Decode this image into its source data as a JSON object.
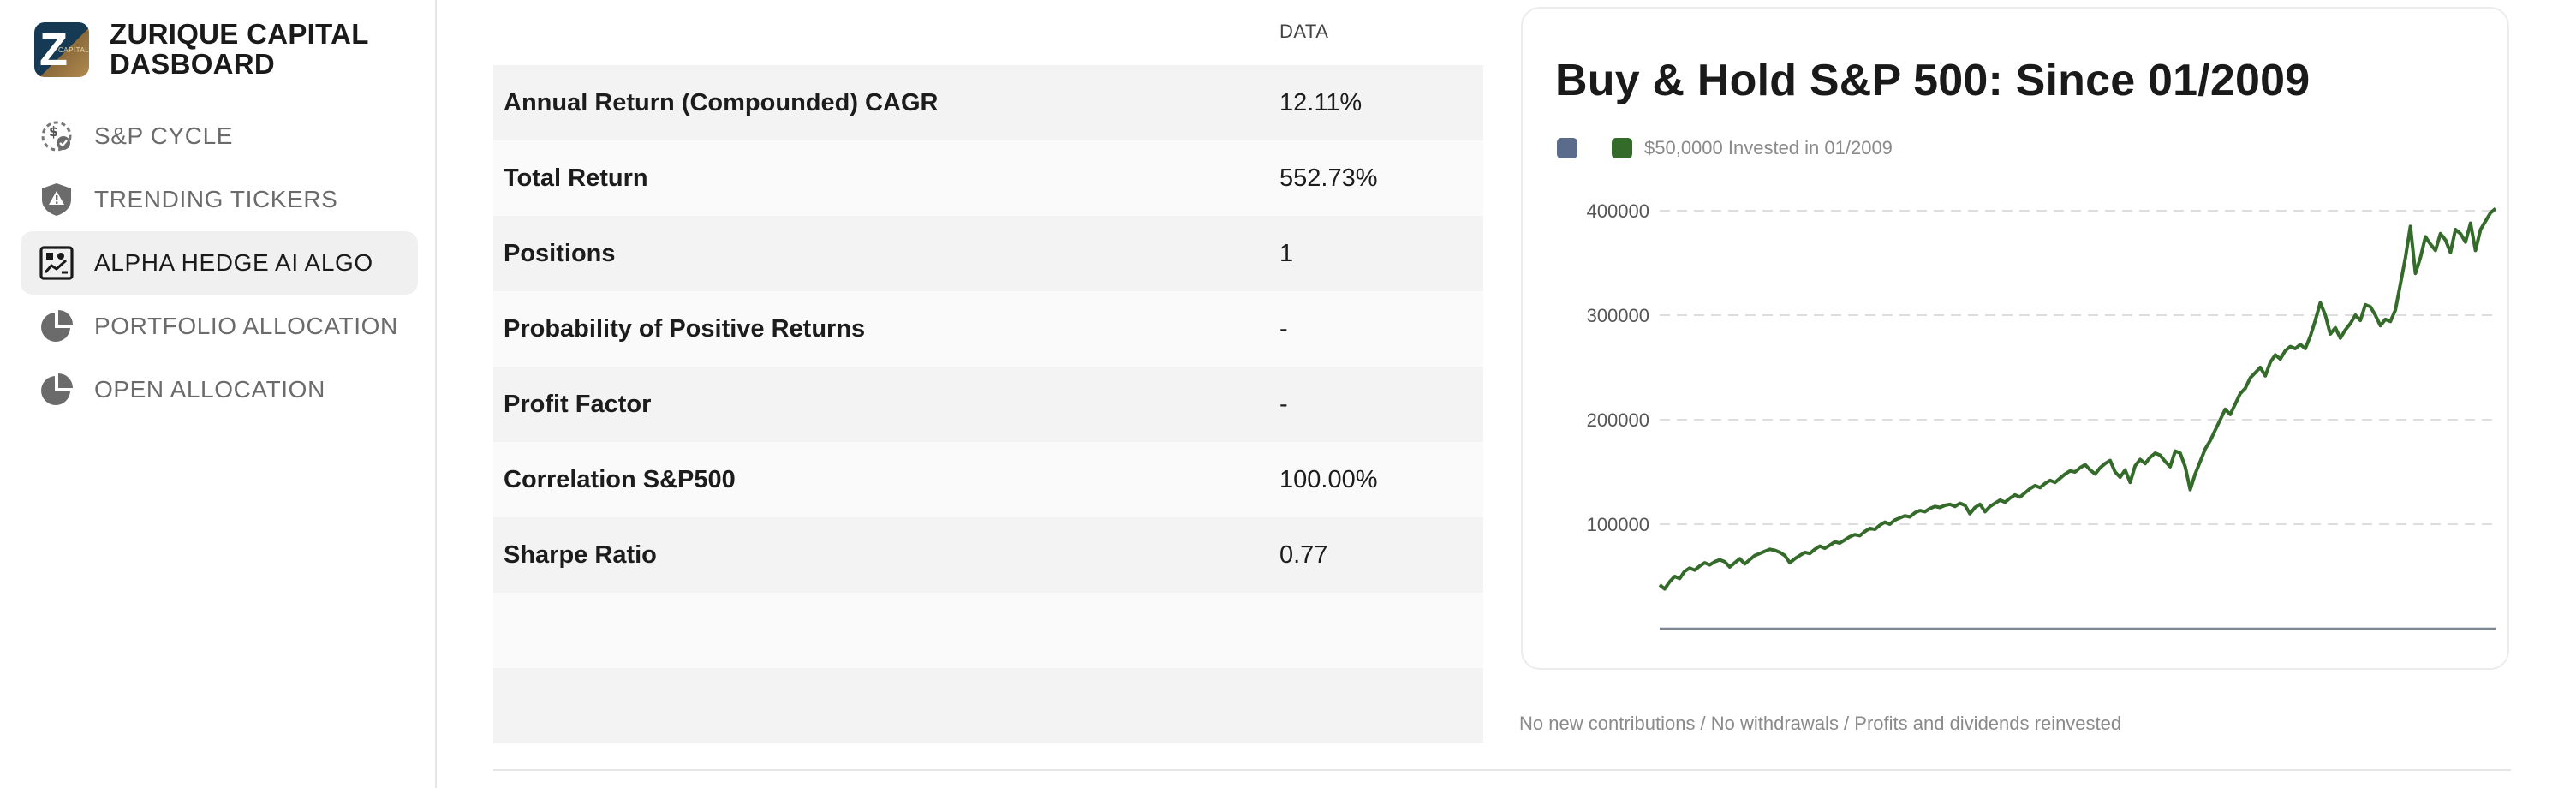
{
  "brand": {
    "title_line1": "ZURIQUE CAPITAL",
    "title_line2": "DASBOARD",
    "logo_letter": "Z",
    "logo_caption": "CAPITAL"
  },
  "sidebar": {
    "items": [
      {
        "label": "S&P CYCLE",
        "icon": "cycle-icon",
        "active": false
      },
      {
        "label": "TRENDING TICKERS",
        "icon": "warning-shield-icon",
        "active": false
      },
      {
        "label": "ALPHA HEDGE AI ALGO",
        "icon": "algo-chart-icon",
        "active": true
      },
      {
        "label": "PORTFOLIO ALLOCATION",
        "icon": "pie-chart-icon",
        "active": false
      },
      {
        "label": "OPEN ALLOCATION",
        "icon": "pie-chart-icon",
        "active": false
      }
    ]
  },
  "table": {
    "column_header": "DATA",
    "rows": [
      {
        "metric": "Annual Return (Compounded) CAGR",
        "value": "12.11%"
      },
      {
        "metric": "Total Return",
        "value": "552.73%"
      },
      {
        "metric": "Positions",
        "value": "1"
      },
      {
        "metric": "Probability of Positive Returns",
        "value": "-"
      },
      {
        "metric": "Profit Factor",
        "value": "-"
      },
      {
        "metric": "Correlation S&P500",
        "value": "100.00%"
      },
      {
        "metric": "Sharpe Ratio",
        "value": "0.77"
      }
    ]
  },
  "card": {
    "title": "Buy & Hold S&P 500: Since 01/2009",
    "legend": [
      {
        "label": "",
        "color": "#5a6b8c"
      },
      {
        "label": "$50,0000 Invested in 01/2009",
        "color": "#346a2a"
      }
    ]
  },
  "footnote": "No new contributions / No withdrawals / Profits and dividends reinvested",
  "colors": {
    "line": "#346a2a",
    "grid": "#dddddd",
    "axis": "#7d8793"
  },
  "chart_data": {
    "type": "line",
    "title": "Buy & Hold S&P 500: Since 01/2009",
    "xlabel": "",
    "ylabel": "",
    "ylim": [
      0,
      400000
    ],
    "yticks": [
      100000,
      200000,
      300000,
      400000
    ],
    "ytick_labels": [
      "100000",
      "200000",
      "300000",
      "400000"
    ],
    "grid": true,
    "legend_position": "top-left",
    "series": [
      {
        "name": "$50,0000 Invested in 01/2009",
        "color": "#346a2a",
        "values": [
          42000,
          38000,
          45000,
          50000,
          48000,
          55000,
          58000,
          56000,
          60000,
          63000,
          61000,
          64000,
          66000,
          64000,
          59000,
          63000,
          67000,
          62000,
          66000,
          70000,
          72000,
          74000,
          76000,
          75000,
          73000,
          70000,
          63000,
          67000,
          70000,
          73000,
          72000,
          76000,
          79000,
          77000,
          80000,
          83000,
          82000,
          85000,
          88000,
          90000,
          89000,
          93000,
          96000,
          95000,
          99000,
          102000,
          100000,
          104000,
          106000,
          108000,
          107000,
          111000,
          113000,
          112000,
          115000,
          117000,
          116000,
          118000,
          119000,
          117000,
          120000,
          118000,
          110000,
          116000,
          119000,
          112000,
          117000,
          120000,
          123000,
          121000,
          125000,
          128000,
          126000,
          130000,
          134000,
          137000,
          135000,
          139000,
          142000,
          140000,
          144000,
          148000,
          151000,
          150000,
          154000,
          157000,
          152000,
          148000,
          154000,
          158000,
          161000,
          150000,
          145000,
          152000,
          140000,
          156000,
          162000,
          158000,
          164000,
          168000,
          166000,
          160000,
          155000,
          170000,
          168000,
          155000,
          133000,
          148000,
          160000,
          172000,
          180000,
          190000,
          200000,
          210000,
          205000,
          215000,
          225000,
          230000,
          240000,
          245000,
          250000,
          242000,
          255000,
          262000,
          258000,
          266000,
          270000,
          268000,
          272000,
          268000,
          280000,
          295000,
          312000,
          300000,
          282000,
          288000,
          278000,
          286000,
          292000,
          300000,
          295000,
          310000,
          308000,
          300000,
          290000,
          296000,
          294000,
          305000,
          330000,
          355000,
          385000,
          340000,
          355000,
          375000,
          368000,
          362000,
          378000,
          372000,
          360000,
          382000,
          378000,
          370000,
          388000,
          362000,
          382000,
          390000,
          398000,
          402000
        ]
      }
    ]
  }
}
